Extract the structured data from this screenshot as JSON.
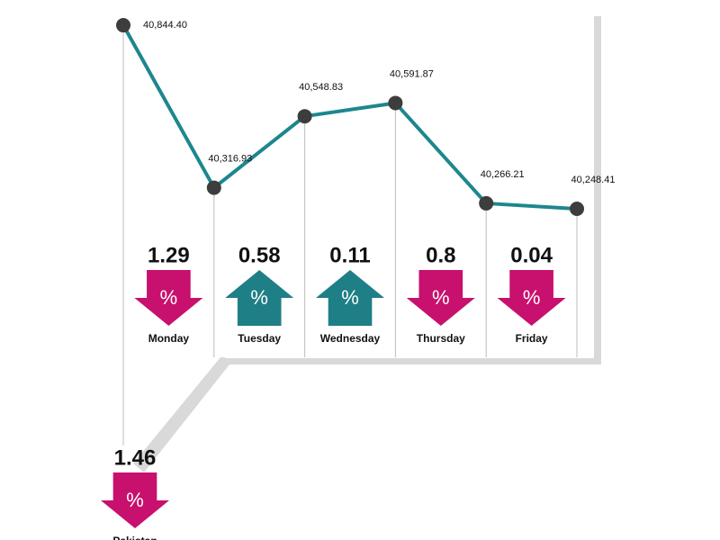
{
  "chart_data": {
    "type": "line",
    "values": [
      40844.4,
      40316.93,
      40548.83,
      40591.87,
      40266.21,
      40248.41
    ],
    "value_labels": [
      "40,844.40",
      "40,316.93",
      "40,548.83",
      "40,591.87",
      "40,266.21",
      "40,248.41"
    ],
    "color": "#1d878d",
    "point_color": "#3d3d3d",
    "ylim": [
      40200,
      40900
    ],
    "change_symbol": "%",
    "colors": {
      "down": "#c8106e",
      "up": "#1f7f86"
    },
    "changes": [
      {
        "name": "Monday",
        "value": 1.29,
        "direction": "down"
      },
      {
        "name": "Tuesday",
        "value": 0.58,
        "direction": "up"
      },
      {
        "name": "Wednesday",
        "value": 0.11,
        "direction": "up"
      },
      {
        "name": "Thursday",
        "value": 0.8,
        "direction": "down"
      },
      {
        "name": "Friday",
        "value": 0.04,
        "direction": "down"
      }
    ],
    "pakistan": {
      "name": "Pakistan",
      "value": 1.46,
      "direction": "down"
    }
  }
}
